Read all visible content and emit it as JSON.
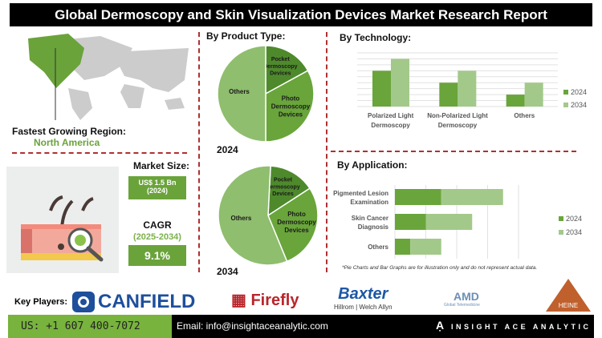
{
  "title": "Global Dermoscopy and Skin Visualization Devices Market Research Report",
  "region": {
    "label": "Fastest Growing Region:",
    "value": "North America"
  },
  "market_size": {
    "label": "Market Size:",
    "value": "US$ 1.5 Bn",
    "year": "(2024)"
  },
  "cagr": {
    "label": "CAGR",
    "period": "(2025-2034)",
    "value": "9.1%"
  },
  "colors": {
    "dark_green": "#4e8a2c",
    "mid_green": "#69a53b",
    "light_green": "#a3c98a",
    "pie_others": "#8fbe6e",
    "divider": "#b03030"
  },
  "chart_data": [
    {
      "type": "pie",
      "title": "By Product Type:",
      "label": "2024",
      "slices": [
        {
          "name": "Pocket Dermoscopy Devices",
          "value": 17
        },
        {
          "name": "Photo Dermoscopy Devices",
          "value": 33
        },
        {
          "name": "Others",
          "value": 50
        }
      ]
    },
    {
      "type": "pie",
      "label": "2034",
      "slices": [
        {
          "name": "Pocket Dermoscopy Devices",
          "value": 15
        },
        {
          "name": "Photo Dermoscopy Devices",
          "value": 28
        },
        {
          "name": "Others",
          "value": 57
        }
      ]
    },
    {
      "type": "bar",
      "title": "By  Technology:",
      "categories": [
        "Polarized Light Dermoscopy",
        "Non-Polarized Light Dermoscopy",
        "Others"
      ],
      "series": [
        {
          "name": "2024",
          "values": [
            6,
            4,
            2
          ]
        },
        {
          "name": "2034",
          "values": [
            8,
            6,
            4
          ]
        }
      ],
      "ylim": [
        0,
        9
      ],
      "grid": true,
      "legend": "right"
    },
    {
      "type": "bar",
      "orientation": "horizontal",
      "stacked": true,
      "title": "By Application:",
      "categories": [
        "Pigmented Lesion Examination",
        "Skin Cancer Diagnosis",
        "Others"
      ],
      "series": [
        {
          "name": "2024",
          "values": [
            1.5,
            1,
            0.5
          ]
        },
        {
          "name": "2034",
          "values": [
            2,
            1.5,
            1
          ]
        }
      ],
      "xlim": [
        0,
        4
      ],
      "grid": true,
      "legend": "right"
    }
  ],
  "footnote": "*Pie Charts and Bar Graphs are for illustration only and do not represent actual data.",
  "key_players": {
    "label": "Key Players:",
    "logos": [
      "CANFIELD",
      "Firefly",
      "Baxter",
      "Hillrom | Welch Allyn",
      "AMD",
      "Global Telemedicine",
      "HEINE"
    ]
  },
  "footer": {
    "phone": "US: +1 607 400-7072",
    "email": "Email: info@insightaceanalytic.com",
    "brand": "INSIGHT ACE ANALYTIC"
  }
}
